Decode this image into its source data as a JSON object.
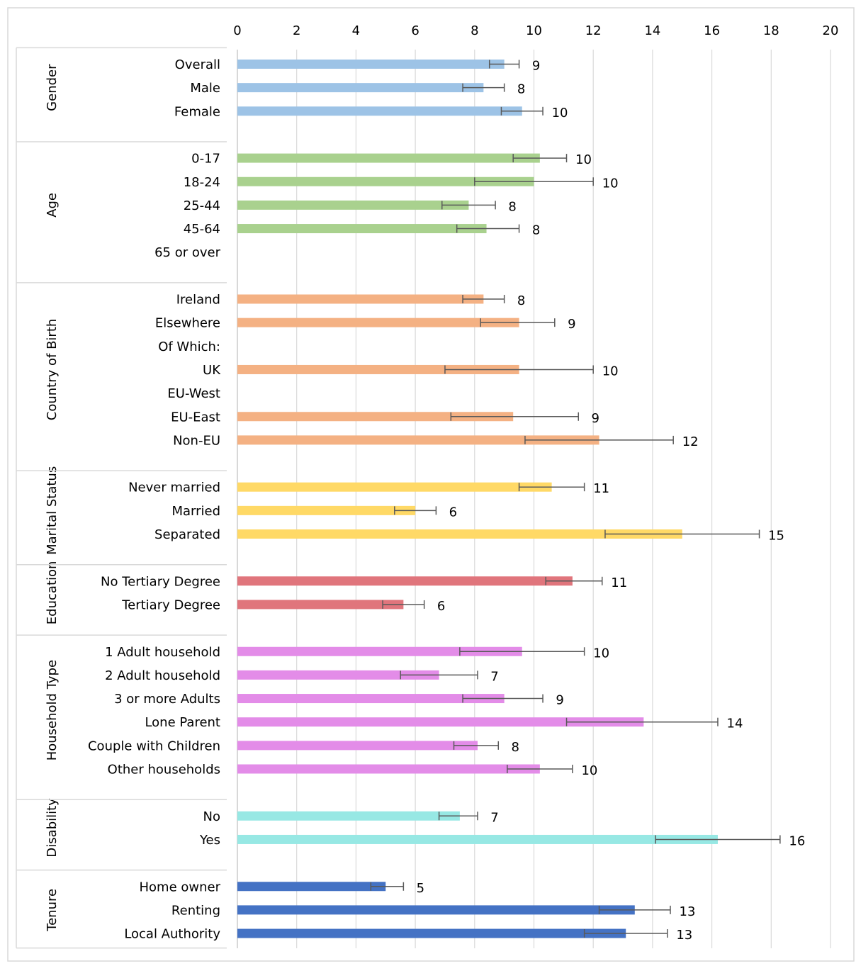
{
  "chart_data": {
    "type": "bar",
    "orientation": "horizontal",
    "xlim": [
      0,
      20
    ],
    "x_ticks": [
      "0",
      "2",
      "4",
      "6",
      "8",
      "10",
      "12",
      "14",
      "16",
      "18",
      "20"
    ],
    "grid": "vertical",
    "legend": "none",
    "groups": [
      {
        "name": "Gender",
        "color": "#9DC3E6",
        "rows": [
          {
            "label": "Overall",
            "value": 9.0,
            "err_low": 8.5,
            "err_high": 9.5,
            "data_label": "9"
          },
          {
            "label": "Male",
            "value": 8.3,
            "err_low": 7.6,
            "err_high": 9.0,
            "data_label": "8"
          },
          {
            "label": "Female",
            "value": 9.6,
            "err_low": 8.9,
            "err_high": 10.3,
            "data_label": "10"
          }
        ]
      },
      {
        "name": "Age",
        "color": "#A9D18E",
        "rows": [
          {
            "label": "0-17",
            "value": 10.2,
            "err_low": 9.3,
            "err_high": 11.1,
            "data_label": "10"
          },
          {
            "label": "18-24",
            "value": 10.0,
            "err_low": 8.0,
            "err_high": 12.0,
            "data_label": "10"
          },
          {
            "label": "25-44",
            "value": 7.8,
            "err_low": 6.9,
            "err_high": 8.7,
            "data_label": "8"
          },
          {
            "label": "45-64",
            "value": 8.4,
            "err_low": 7.4,
            "err_high": 9.5,
            "data_label": "8"
          },
          {
            "label": "65 or over",
            "value": null,
            "err_low": null,
            "err_high": null,
            "data_label": ""
          }
        ]
      },
      {
        "name": "Country of Birth",
        "color": "#F4B183",
        "rows": [
          {
            "label": "Ireland",
            "value": 8.3,
            "err_low": 7.6,
            "err_high": 9.0,
            "data_label": "8"
          },
          {
            "label": "Elsewhere",
            "value": 9.5,
            "err_low": 8.2,
            "err_high": 10.7,
            "data_label": "9"
          },
          {
            "label": "Of Which:",
            "value": null,
            "err_low": null,
            "err_high": null,
            "data_label": ""
          },
          {
            "label": "UK",
            "value": 9.5,
            "err_low": 7.0,
            "err_high": 12.0,
            "data_label": "10"
          },
          {
            "label": "EU-West",
            "value": null,
            "err_low": null,
            "err_high": null,
            "data_label": ""
          },
          {
            "label": "EU-East",
            "value": 9.3,
            "err_low": 7.2,
            "err_high": 11.5,
            "data_label": "9"
          },
          {
            "label": "Non-EU",
            "value": 12.2,
            "err_low": 9.7,
            "err_high": 14.7,
            "data_label": "12"
          }
        ]
      },
      {
        "name": "Marital Status",
        "color": "#FFD966",
        "rows": [
          {
            "label": "Never married",
            "value": 10.6,
            "err_low": 9.5,
            "err_high": 11.7,
            "data_label": "11"
          },
          {
            "label": "Married",
            "value": 6.0,
            "err_low": 5.3,
            "err_high": 6.7,
            "data_label": "6"
          },
          {
            "label": "Separated",
            "value": 15.0,
            "err_low": 12.4,
            "err_high": 17.6,
            "data_label": "15"
          }
        ]
      },
      {
        "name": "Education",
        "color": "#E0757C",
        "rows": [
          {
            "label": "No Tertiary Degree",
            "value": 11.3,
            "err_low": 10.4,
            "err_high": 12.3,
            "data_label": "11"
          },
          {
            "label": "Tertiary Degree",
            "value": 5.6,
            "err_low": 4.9,
            "err_high": 6.3,
            "data_label": "6"
          }
        ]
      },
      {
        "name": "Household Type",
        "color": "#E38CE8",
        "rows": [
          {
            "label": "1 Adult household",
            "value": 9.6,
            "err_low": 7.5,
            "err_high": 11.7,
            "data_label": "10"
          },
          {
            "label": "2 Adult household",
            "value": 6.8,
            "err_low": 5.5,
            "err_high": 8.1,
            "data_label": "7"
          },
          {
            "label": "3 or more Adults",
            "value": 9.0,
            "err_low": 7.6,
            "err_high": 10.3,
            "data_label": "9"
          },
          {
            "label": "Lone Parent",
            "value": 13.7,
            "err_low": 11.1,
            "err_high": 16.2,
            "data_label": "14"
          },
          {
            "label": "Couple with Children",
            "value": 8.1,
            "err_low": 7.3,
            "err_high": 8.8,
            "data_label": "8"
          },
          {
            "label": "Other households",
            "value": 10.2,
            "err_low": 9.1,
            "err_high": 11.3,
            "data_label": "10"
          }
        ]
      },
      {
        "name": "Disability",
        "color": "#97E8E4",
        "rows": [
          {
            "label": "No",
            "value": 7.5,
            "err_low": 6.8,
            "err_high": 8.1,
            "data_label": "7"
          },
          {
            "label": "Yes",
            "value": 16.2,
            "err_low": 14.1,
            "err_high": 18.3,
            "data_label": "16"
          }
        ]
      },
      {
        "name": "Tenure",
        "color": "#4472C4",
        "rows": [
          {
            "label": "Home owner",
            "value": 5.0,
            "err_low": 4.5,
            "err_high": 5.6,
            "data_label": "5"
          },
          {
            "label": "Renting",
            "value": 13.4,
            "err_low": 12.2,
            "err_high": 14.6,
            "data_label": "13"
          },
          {
            "label": "Local Authority",
            "value": 13.1,
            "err_low": 11.7,
            "err_high": 14.5,
            "data_label": "13"
          }
        ]
      }
    ]
  }
}
